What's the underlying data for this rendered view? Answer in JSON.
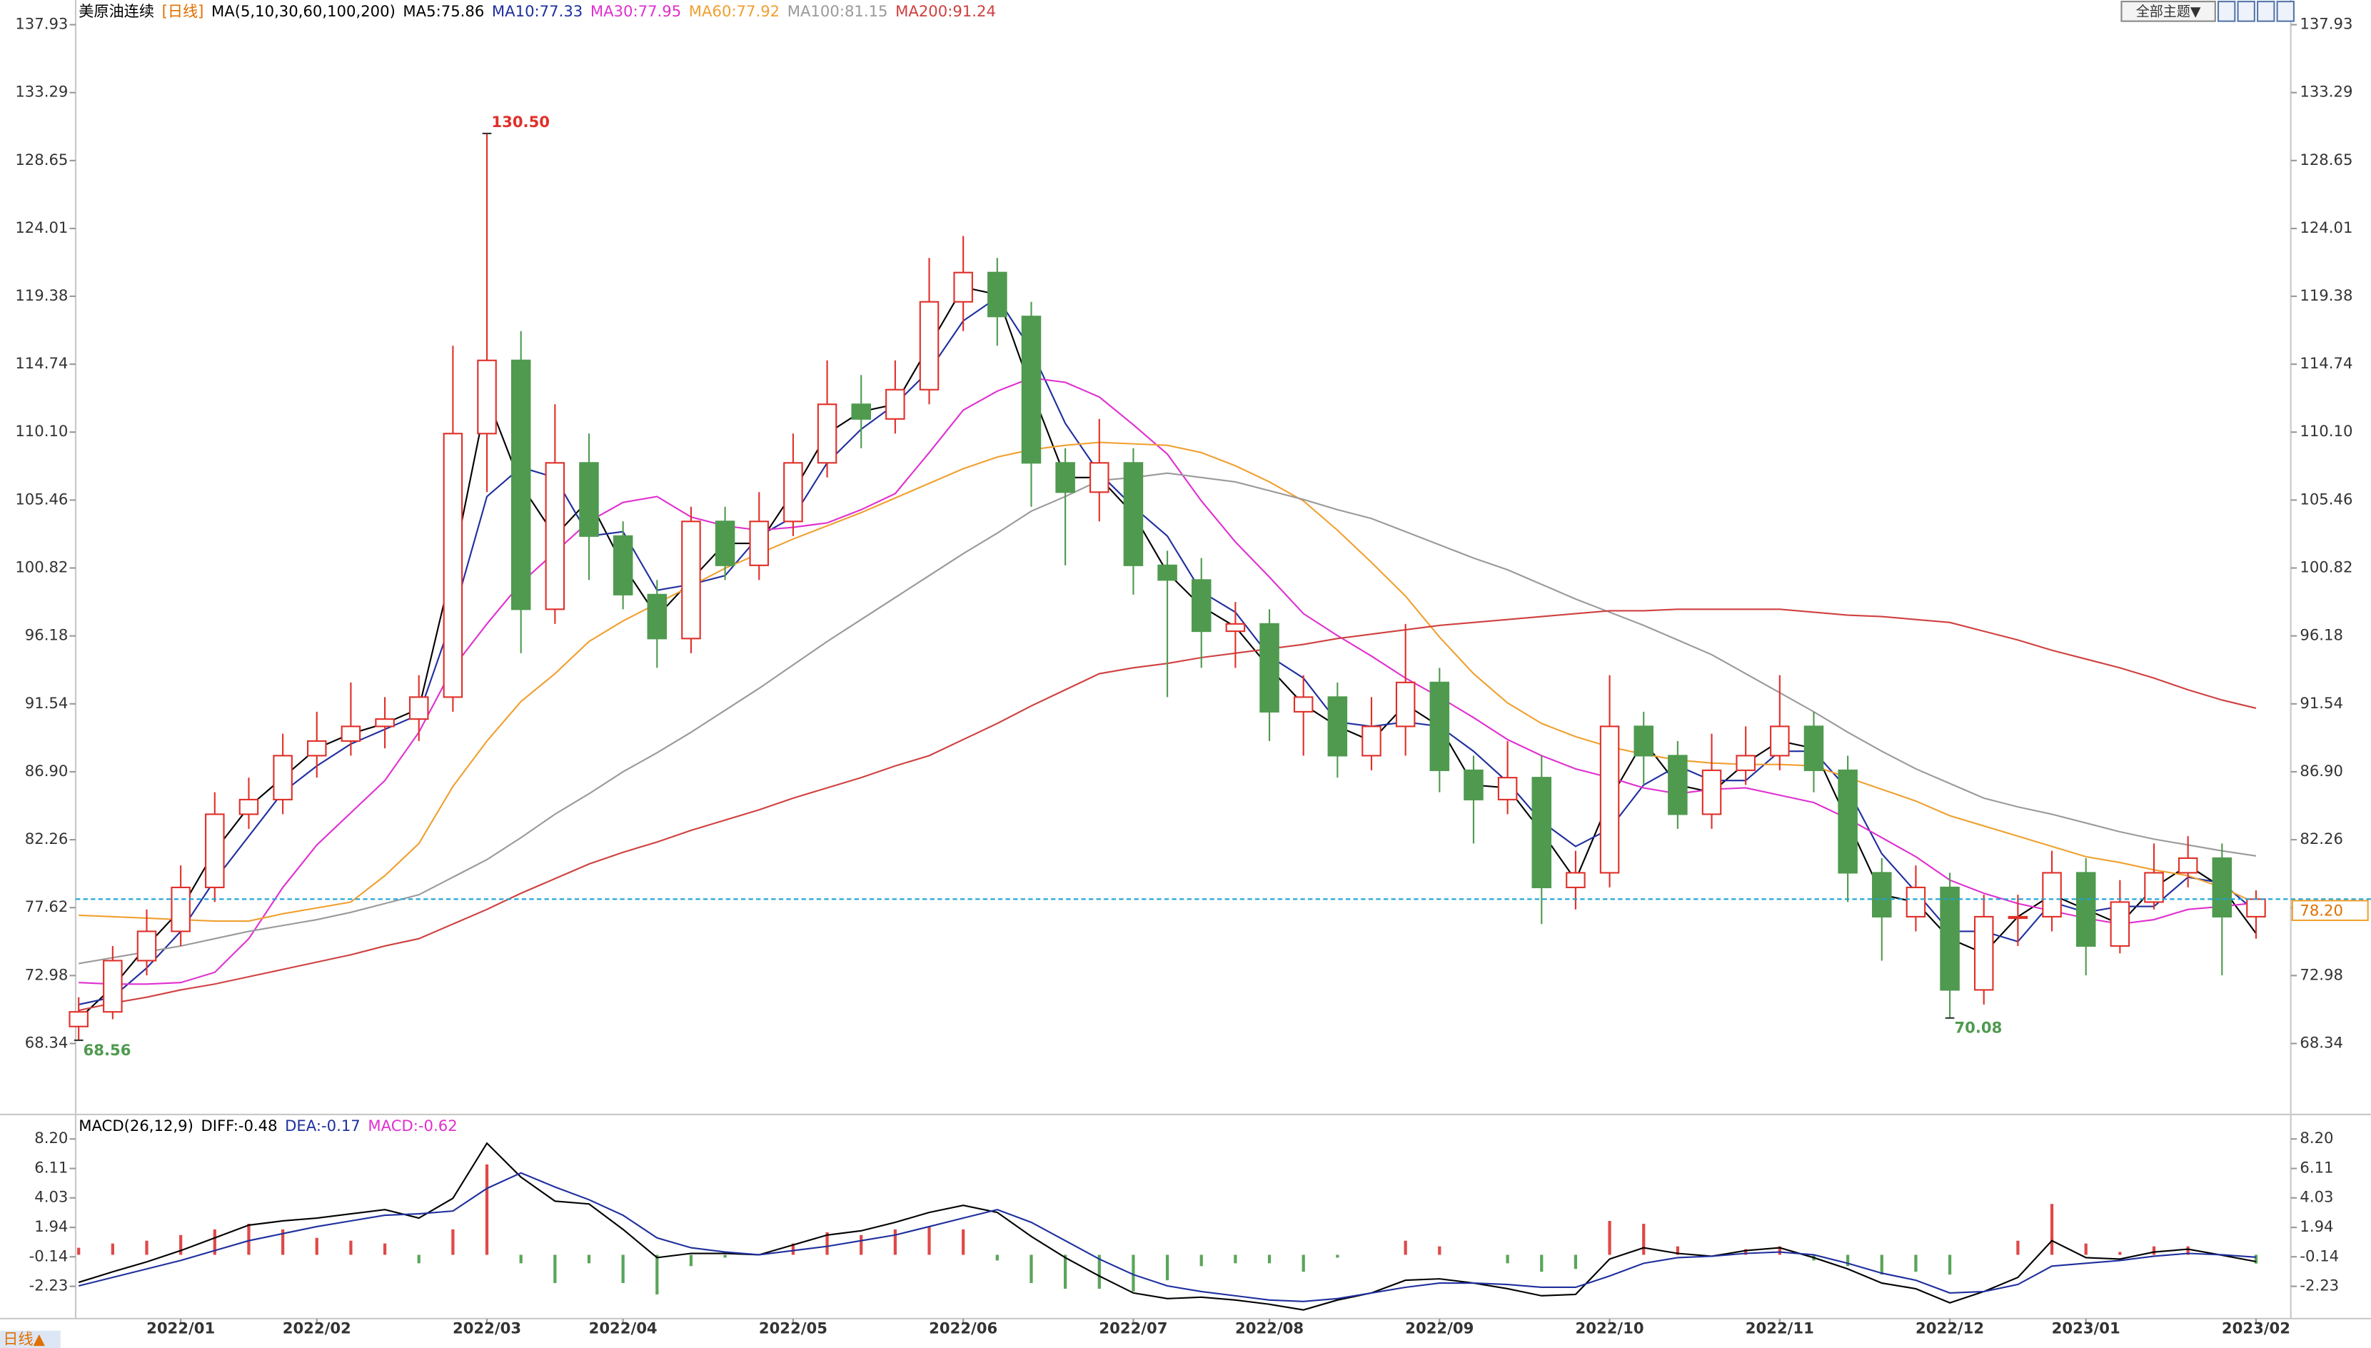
{
  "toolbar": {
    "theme_button": "全部主题▼",
    "tab": "日线▲"
  },
  "chart_data": [
    {
      "type": "candlestick",
      "title": "美原油连续",
      "period": "[日线]",
      "indicator": "MA(5,10,30,60,100,200)",
      "up_color": "#e0302a",
      "down_color": "#4f9a4f",
      "open": [
        69.5,
        70.5,
        74,
        76,
        79,
        84,
        85,
        88,
        89,
        90,
        90.5,
        92,
        110,
        115,
        98,
        108,
        103,
        99,
        96,
        104,
        101,
        104,
        108,
        112,
        111,
        113,
        119,
        121,
        118,
        108,
        106,
        108,
        101,
        100,
        96.5,
        97,
        91,
        92,
        88,
        90,
        93,
        87,
        85,
        86.5,
        79,
        80,
        90,
        88,
        84,
        87,
        88,
        90,
        87,
        80,
        77,
        79,
        72,
        77,
        77,
        80,
        75,
        78,
        80,
        81,
        77
      ],
      "high": [
        71.5,
        75,
        77.5,
        80.5,
        85.5,
        86.5,
        89.5,
        91,
        93,
        92,
        93.5,
        116,
        130.5,
        117,
        112,
        110,
        104,
        100,
        105,
        105,
        106,
        110,
        115,
        114,
        115,
        122,
        123.5,
        122,
        119,
        109,
        111,
        109,
        102,
        101.5,
        98.5,
        98,
        93.5,
        93,
        92,
        97,
        94,
        88,
        89,
        88,
        81.5,
        93.5,
        91,
        89,
        89.5,
        90,
        93.5,
        91,
        88,
        81,
        80.5,
        80,
        78.5,
        78.5,
        81.5,
        81,
        79.5,
        82,
        82.5,
        82,
        78.8
      ],
      "low": [
        68.56,
        70,
        73,
        75,
        78,
        83,
        84,
        86.5,
        88,
        88.5,
        89,
        91,
        106,
        95,
        97,
        100,
        98,
        94,
        95,
        100,
        100,
        103,
        107,
        109,
        110,
        112,
        117,
        116,
        105,
        101,
        104,
        99,
        92,
        94,
        94,
        89,
        88,
        86.5,
        87,
        88,
        85.5,
        82,
        84,
        76.5,
        77.5,
        79,
        86,
        83,
        83,
        86,
        87,
        85.5,
        78,
        74,
        76,
        70.08,
        71,
        75,
        76,
        73,
        74.5,
        77.5,
        79,
        73,
        75.5
      ],
      "close": [
        70.5,
        74,
        76,
        79,
        84,
        85,
        88,
        89,
        90,
        90.5,
        92,
        110,
        115,
        98,
        108,
        103,
        99,
        96,
        104,
        101,
        104,
        108,
        112,
        111,
        113,
        119,
        121,
        118,
        108,
        106,
        108,
        101,
        100,
        96.5,
        97,
        91,
        92,
        88,
        90,
        93,
        87,
        85,
        86.5,
        79,
        80,
        90,
        88,
        84,
        87,
        88,
        90,
        87,
        80,
        77,
        79,
        72,
        77,
        77,
        80,
        75,
        78,
        80,
        81,
        77,
        78.2
      ],
      "series": [
        {
          "name": "MA5:75.86",
          "color": "#000000",
          "values": [
            70,
            72.2,
            75,
            77.5,
            81.5,
            84.5,
            86.5,
            88.5,
            89.5,
            90.2,
            91.2,
            101,
            112.5,
            106.5,
            103,
            105.5,
            101,
            97.5,
            100,
            102.5,
            102.5,
            106,
            110,
            111.5,
            112,
            116,
            120,
            119.5,
            113,
            107,
            107,
            104.5,
            100.5,
            98.2,
            96.8,
            94,
            91.5,
            90,
            89,
            91.5,
            90,
            86,
            85.8,
            82.8,
            79.5,
            85,
            89,
            86,
            85.5,
            87.5,
            89,
            88.5,
            83.5,
            78.5,
            78,
            75.5,
            74.5,
            77,
            78.5,
            77.5,
            76.5,
            79,
            80.5,
            79,
            75.86
          ]
        },
        {
          "name": "MA10:77.33",
          "color": "#1f2f9e",
          "values": [
            71,
            71.5,
            73.5,
            76,
            79.5,
            82.5,
            85.5,
            87.3,
            88.8,
            89.8,
            90.8,
            97.5,
            105.7,
            107.7,
            107,
            103,
            103.3,
            99.3,
            99.7,
            100.3,
            103,
            104.3,
            108,
            110.3,
            112,
            114.3,
            117.7,
            119.3,
            115.7,
            110.7,
            107.3,
            105,
            103,
            99.2,
            97.8,
            94.8,
            93.3,
            90.3,
            90,
            90.3,
            90,
            88.3,
            86.2,
            83.5,
            81.8,
            83,
            86,
            87.3,
            86.3,
            86.3,
            88.3,
            88.3,
            85.7,
            81.3,
            78.7,
            76,
            76,
            75.3,
            78,
            77.3,
            77.7,
            77.7,
            79.7,
            79.3,
            77.33
          ]
        },
        {
          "name": "MA30:77.95",
          "color": "#e030d0",
          "values": [
            72.5,
            72.4,
            72.4,
            72.5,
            73.2,
            75.5,
            79,
            81.9,
            84.1,
            86.3,
            89.6,
            94,
            97,
            99.8,
            101.9,
            104,
            105.3,
            105.7,
            104.3,
            103.7,
            103.4,
            103.6,
            103.9,
            104.8,
            105.9,
            108.7,
            111.6,
            112.9,
            113.8,
            113.5,
            112.5,
            110.6,
            108.6,
            105.4,
            102.6,
            100.2,
            97.7,
            96.2,
            94.8,
            93.3,
            92,
            90.6,
            89.1,
            88,
            87.1,
            86.5,
            85.8,
            85.4,
            85.7,
            85.8,
            85.3,
            84.8,
            83.7,
            82.4,
            81.1,
            79.5,
            78.6,
            77.9,
            77.4,
            76.9,
            76.5,
            76.8,
            77.5,
            77.7,
            77.95
          ]
        },
        {
          "name": "MA60:77.92",
          "color": "#f0a030",
          "values": [
            77.1,
            77,
            76.9,
            76.8,
            76.7,
            76.7,
            77.2,
            77.6,
            78,
            79.8,
            82,
            85.9,
            89,
            91.7,
            93.6,
            95.8,
            97.2,
            98.4,
            99.6,
            100.8,
            101.8,
            102.8,
            103.7,
            104.6,
            105.6,
            106.6,
            107.6,
            108.4,
            108.9,
            109.2,
            109.4,
            109.3,
            109.2,
            108.7,
            107.8,
            106.7,
            105.4,
            103.4,
            101.2,
            98.9,
            96.1,
            93.6,
            91.6,
            90.2,
            89.3,
            88.6,
            88.1,
            87.7,
            87.5,
            87.4,
            87.4,
            87.3,
            86.5,
            85.7,
            84.9,
            83.9,
            83.2,
            82.5,
            81.8,
            81.1,
            80.7,
            80.2,
            79.8,
            79,
            77.92
          ]
        },
        {
          "name": "MA100:81.15",
          "color": "#9a9a9a",
          "values": [
            73.8,
            74.2,
            74.6,
            75,
            75.5,
            76,
            76.4,
            76.8,
            77.3,
            77.9,
            78.5,
            79.7,
            80.9,
            82.4,
            84,
            85.4,
            86.9,
            88.2,
            89.6,
            91.1,
            92.6,
            94.2,
            95.8,
            97.3,
            98.8,
            100.3,
            101.8,
            103.2,
            104.7,
            105.7,
            106.8,
            107,
            107.3,
            107,
            106.7,
            106.1,
            105.5,
            104.8,
            104.2,
            103.3,
            102.4,
            101.5,
            100.7,
            99.7,
            98.7,
            97.8,
            96.9,
            95.9,
            94.9,
            93.6,
            92.3,
            91,
            89.6,
            88.3,
            87.1,
            86.1,
            85.1,
            84.5,
            84,
            83.4,
            82.8,
            82.3,
            81.9,
            81.5,
            81.15
          ]
        },
        {
          "name": "MA200:91.24",
          "color": "#d04040",
          "values": [
            70.6,
            71.1,
            71.5,
            72,
            72.4,
            72.9,
            73.4,
            73.9,
            74.4,
            75,
            75.5,
            76.5,
            77.5,
            78.6,
            79.6,
            80.6,
            81.4,
            82.1,
            82.9,
            83.6,
            84.3,
            85.1,
            85.8,
            86.5,
            87.3,
            88,
            89.1,
            90.2,
            91.4,
            92.5,
            93.6,
            94,
            94.3,
            94.7,
            95,
            95.3,
            95.6,
            96,
            96.3,
            96.6,
            96.9,
            97.1,
            97.3,
            97.5,
            97.7,
            97.9,
            97.9,
            98,
            98,
            98,
            98,
            97.8,
            97.6,
            97.5,
            97.3,
            97.1,
            96.5,
            95.9,
            95.2,
            94.6,
            94,
            93.3,
            92.5,
            91.8,
            91.24
          ]
        }
      ],
      "ylim": [
        63.7,
        139.1
      ],
      "yticks": [
        68.34,
        72.98,
        77.62,
        82.26,
        {
          "value": 86.9,
          "label": "86.90"
        },
        91.54,
        96.18,
        100.82,
        105.46,
        {
          "value": 110.1,
          "label": "110.10"
        },
        114.74,
        119.38,
        124.01,
        128.65,
        133.29,
        137.93
      ],
      "annotations": [
        {
          "label": "130.50",
          "value": 130.5
        },
        {
          "label": "68.56",
          "value": 68.56
        },
        {
          "label": "70.08",
          "value": 70.08
        }
      ],
      "last_price": {
        "value": 78.2,
        "label": "78.20",
        "color": "#1aa3d6"
      }
    },
    {
      "type": "macd",
      "title": "MACD(26,12,9)",
      "categories": [
        null,
        null,
        null,
        "2022/01",
        null,
        null,
        null,
        "2022/02",
        null,
        null,
        null,
        null,
        "2022/03",
        null,
        null,
        null,
        "2022/04",
        null,
        null,
        null,
        null,
        "2022/05",
        null,
        null,
        null,
        null,
        "2022/06",
        null,
        null,
        null,
        null,
        "2022/07",
        null,
        null,
        null,
        "2022/08",
        null,
        null,
        null,
        null,
        "2022/09",
        null,
        null,
        null,
        null,
        "2022/10",
        null,
        null,
        null,
        null,
        "2022/11",
        null,
        null,
        null,
        null,
        "2022/12",
        null,
        null,
        null,
        "2023/01",
        null,
        null,
        null,
        null,
        "2023/02"
      ],
      "series": [
        {
          "name": "DIFF:-0.48",
          "color": "#000000",
          "type": "line",
          "values": [
            -1.95,
            -1.2,
            -0.5,
            0.3,
            1.2,
            2.1,
            2.4,
            2.6,
            2.9,
            3.2,
            2.6,
            4,
            7.9,
            5.5,
            3.8,
            3.6,
            1.8,
            -0.2,
            0.1,
            0.1,
            0,
            0.7,
            1.4,
            1.7,
            2.3,
            3,
            3.5,
            3,
            1.3,
            -0.2,
            -1.5,
            -2.7,
            -3.1,
            -3,
            -3.2,
            -3.5,
            -3.9,
            -3.2,
            -2.7,
            -1.8,
            -1.7,
            -2,
            -2.4,
            -2.9,
            -2.8,
            -0.3,
            0.5,
            0.1,
            -0.1,
            0.3,
            0.5,
            -0.2,
            -1,
            -2,
            -2.4,
            -3.4,
            -2.6,
            -1.6,
            1,
            -0.2,
            -0.3,
            0.2,
            0.4,
            -0.03,
            -0.48
          ]
        },
        {
          "name": "DEA:-0.17",
          "color": "#1f2f9e",
          "type": "line",
          "values": [
            -2.2,
            -1.6,
            -1,
            -0.4,
            0.3,
            1,
            1.5,
            2,
            2.4,
            2.8,
            2.9,
            3.1,
            4.7,
            5.8,
            4.8,
            3.9,
            2.8,
            1.2,
            0.5,
            0.2,
            0,
            0.3,
            0.6,
            1,
            1.4,
            2,
            2.6,
            3.2,
            2.3,
            1,
            -0.3,
            -1.4,
            -2.2,
            -2.6,
            -2.9,
            -3.2,
            -3.3,
            -3.1,
            -2.7,
            -2.3,
            -2,
            -2,
            -2.1,
            -2.3,
            -2.3,
            -1.5,
            -0.6,
            -0.2,
            -0.1,
            0.1,
            0.2,
            0,
            -0.6,
            -1.3,
            -1.8,
            -2.7,
            -2.6,
            -2.1,
            -0.8,
            -0.6,
            -0.4,
            -0.1,
            0.1,
            0,
            -0.17
          ]
        },
        {
          "name": "MACD:-0.62",
          "color": "#e030d0",
          "type": "bar",
          "up_color": "#e04848",
          "down_color": "#5aa55a",
          "values": [
            0.5,
            0.8,
            1,
            1.4,
            1.8,
            2.2,
            1.8,
            1.2,
            1,
            0.8,
            -0.6,
            1.8,
            6.4,
            -0.6,
            -2,
            -0.6,
            -2,
            -2.8,
            -0.8,
            -0.2,
            0,
            0.8,
            1.6,
            1.4,
            1.8,
            2,
            1.8,
            -0.4,
            -2,
            -2.4,
            -2.4,
            -2.6,
            -1.8,
            -0.8,
            -0.6,
            -0.6,
            -1.2,
            -0.2,
            0,
            1,
            0.6,
            0,
            -0.6,
            -1.2,
            -1,
            2.4,
            2.2,
            0.6,
            0,
            0.4,
            0.6,
            -0.4,
            -0.8,
            -1.4,
            -1.2,
            -1.4,
            0,
            1,
            3.6,
            0.8,
            0.2,
            0.6,
            0.6,
            -0.06,
            -0.62
          ]
        }
      ],
      "ylim": [
        -4.3,
        9.4
      ],
      "yticks": [
        {
          "value": 8.2,
          "label": "8.20"
        },
        6.11,
        4.03,
        1.94,
        -0.14,
        -2.23
      ]
    }
  ]
}
